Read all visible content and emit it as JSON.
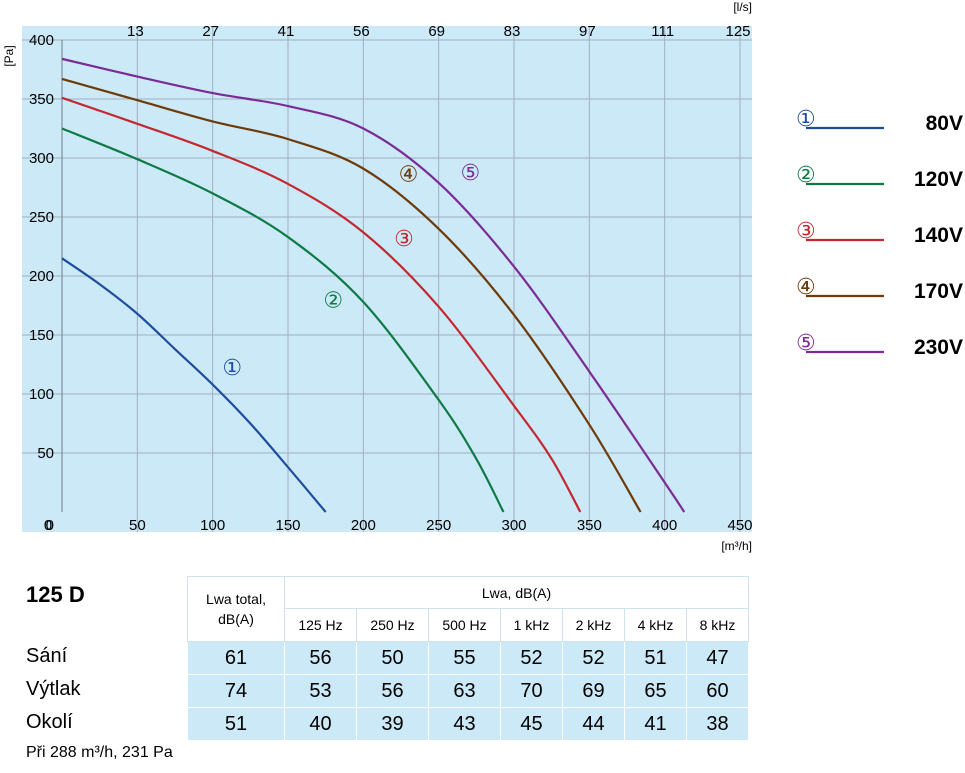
{
  "chart_data": {
    "type": "line",
    "xlabel": "[m³/h]",
    "ylabel": "[Pa]",
    "x2label": "[l/s]",
    "xlim": [
      0,
      450
    ],
    "ylim": [
      0,
      400
    ],
    "x_ticks": [
      "0",
      "50",
      "100",
      "150",
      "200",
      "250",
      "300",
      "350",
      "400",
      "450"
    ],
    "y_ticks": [
      "0",
      "50",
      "100",
      "150",
      "200",
      "250",
      "300",
      "350",
      "400"
    ],
    "x2_ticks": [
      "13",
      "27",
      "41",
      "56",
      "69",
      "83",
      "97",
      "111",
      "125"
    ],
    "grid": true,
    "background": "#cce9f8",
    "series": [
      {
        "name": "80V",
        "marker": "①",
        "color": "#1f4e9c",
        "x": [
          0,
          25,
          50,
          75,
          100,
          125,
          150,
          175
        ],
        "y": [
          215,
          193,
          168,
          138,
          108,
          75,
          38,
          0
        ],
        "label_at": [
          113,
          123
        ]
      },
      {
        "name": "120V",
        "marker": "②",
        "color": "#0f7a45",
        "x": [
          0,
          50,
          100,
          150,
          200,
          250,
          275,
          293
        ],
        "y": [
          325,
          299,
          270,
          233,
          178,
          95,
          45,
          0
        ],
        "label_at": [
          180,
          180
        ]
      },
      {
        "name": "140V",
        "marker": "③",
        "color": "#c3282f",
        "x": [
          0,
          50,
          100,
          150,
          200,
          250,
          300,
          325,
          344
        ],
        "y": [
          351,
          329,
          306,
          278,
          237,
          174,
          90,
          45,
          0
        ],
        "label_at": [
          227,
          232
        ]
      },
      {
        "name": "170V",
        "marker": "④",
        "color": "#6e3a07",
        "x": [
          0,
          50,
          100,
          150,
          200,
          250,
          300,
          350,
          384
        ],
        "y": [
          367,
          349,
          331,
          316,
          291,
          240,
          167,
          74,
          0
        ],
        "label_at": [
          230,
          287
        ]
      },
      {
        "name": "230V",
        "marker": "⑤",
        "color": "#7b2b94",
        "x": [
          0,
          50,
          100,
          150,
          200,
          250,
          300,
          350,
          400,
          413
        ],
        "y": [
          384,
          369,
          355,
          344,
          325,
          279,
          208,
          119,
          25,
          0
        ],
        "label_at": [
          271,
          288
        ]
      }
    ]
  },
  "sound": {
    "model": "125 D",
    "header_total": [
      "Lwa total,",
      "dB(A)"
    ],
    "header_group": "Lwa, dB(A)",
    "bands": [
      "125 Hz",
      "250 Hz",
      "500 Hz",
      "1 kHz",
      "2 kHz",
      "4 kHz",
      "8 kHz"
    ],
    "rows": [
      {
        "label": "Sání",
        "values": [
          "61",
          "56",
          "50",
          "55",
          "52",
          "52",
          "51",
          "47"
        ]
      },
      {
        "label": "Výtlak",
        "values": [
          "74",
          "53",
          "56",
          "63",
          "70",
          "69",
          "65",
          "60"
        ]
      },
      {
        "label": "Okolí",
        "values": [
          "51",
          "40",
          "39",
          "43",
          "45",
          "44",
          "41",
          "38"
        ]
      }
    ],
    "footnote": "Při 288 m³/h, 231 Pa"
  }
}
